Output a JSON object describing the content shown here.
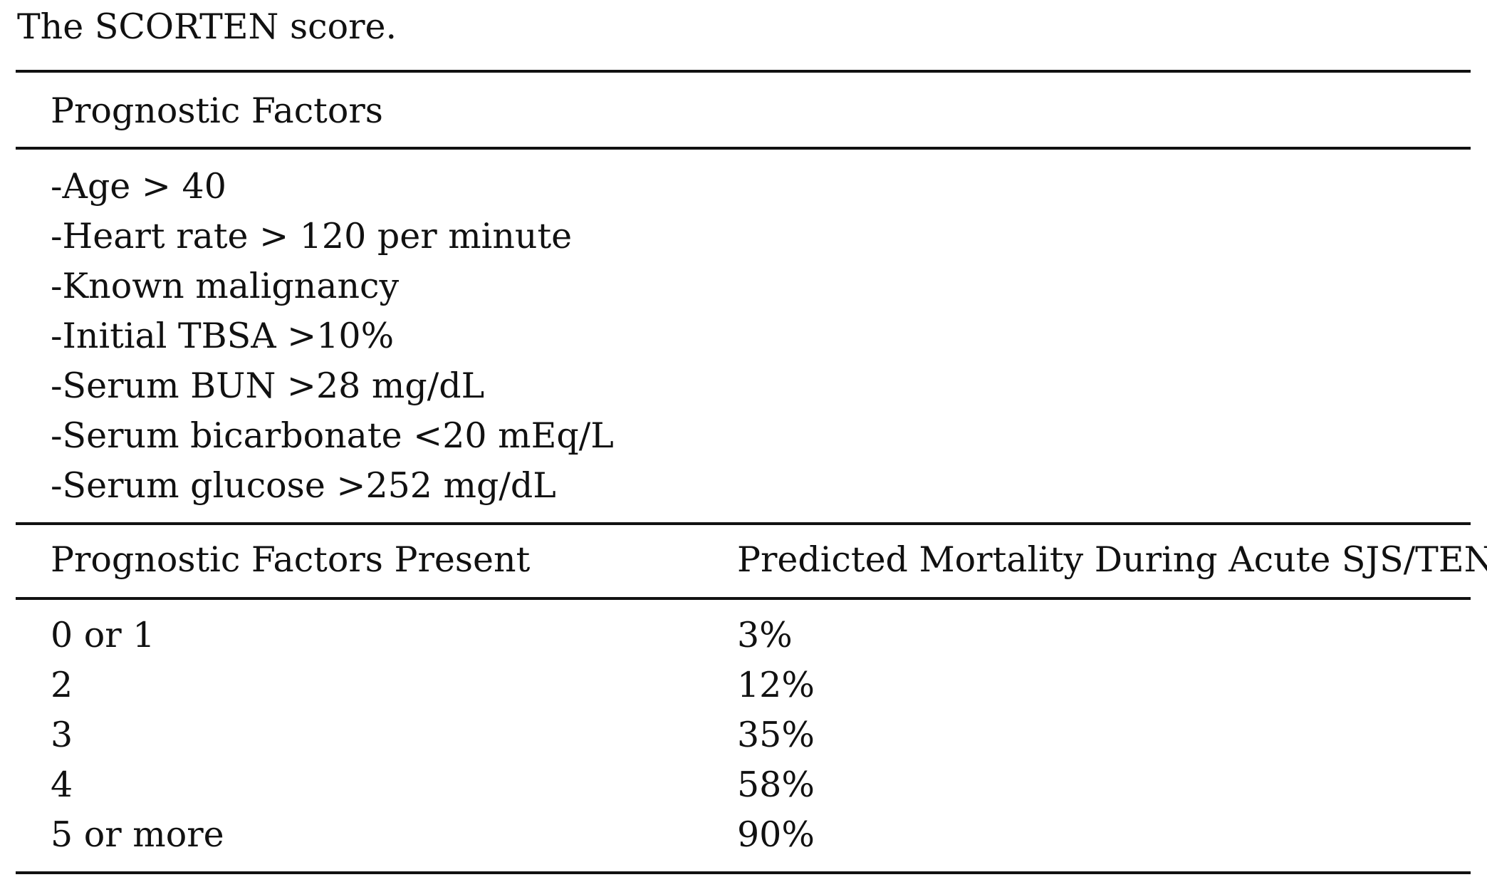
{
  "caption": "The SCORTEN score.",
  "factors_header": "Prognostic Factors",
  "factors": [
    "-Age > 40",
    "-Heart rate > 120 per minute",
    "-Known malignancy",
    "-Initial TBSA >10%",
    "-Serum BUN >28 mg/dL",
    "-Serum bicarbonate <20 mEq/L",
    "-Serum glucose >252 mg/dL"
  ],
  "score_table": {
    "col_present": "Prognostic Factors Present",
    "col_mortality": "Predicted Mortality During Acute SJS/TEN",
    "rows": [
      {
        "present": "0 or 1",
        "mortality": "3%"
      },
      {
        "present": "2",
        "mortality": "12%"
      },
      {
        "present": "3",
        "mortality": "35%"
      },
      {
        "present": "4",
        "mortality": "58%"
      },
      {
        "present": "5 or more",
        "mortality": "90%"
      }
    ]
  }
}
